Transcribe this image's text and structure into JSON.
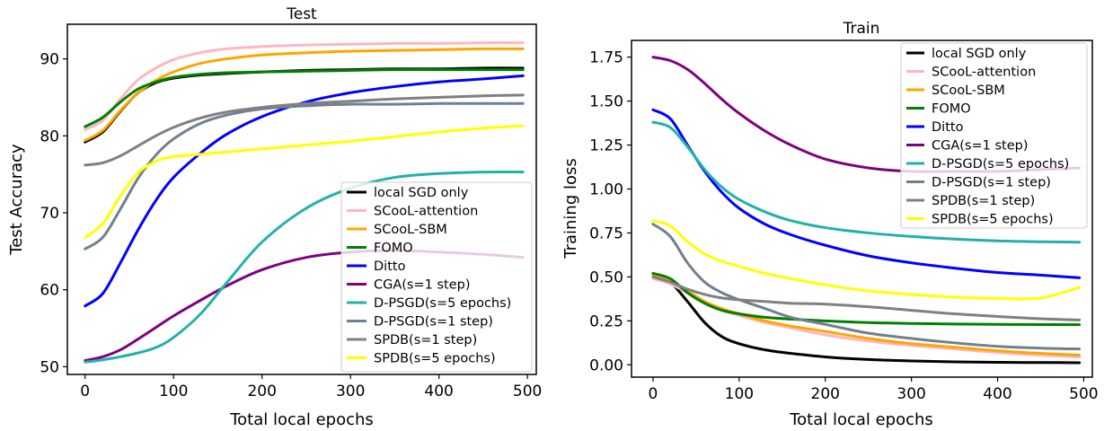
{
  "chart_data": [
    {
      "type": "line",
      "title": "Test",
      "xlabel": "Total local epochs",
      "ylabel": "Test Accuracy",
      "xlim": [
        -20,
        510
      ],
      "ylim": [
        49,
        94.5
      ],
      "xticks": [
        0,
        100,
        200,
        300,
        400,
        500
      ],
      "yticks": [
        50,
        60,
        70,
        80,
        90
      ],
      "grid": false,
      "legend_position": "bottom-right",
      "series": [
        {
          "name": "local SGD only",
          "color": "#000000",
          "x": [
            0,
            20,
            40,
            60,
            80,
            100,
            130,
            160,
            200,
            250,
            300,
            350,
            400,
            450,
            495
          ],
          "y": [
            79.2,
            80.5,
            83.2,
            85.6,
            86.9,
            87.5,
            87.9,
            88.1,
            88.3,
            88.5,
            88.6,
            88.7,
            88.7,
            88.8,
            88.8
          ]
        },
        {
          "name": "SCooL-attention",
          "color": "#FFB6C1",
          "x": [
            0,
            20,
            40,
            60,
            80,
            100,
            130,
            160,
            200,
            250,
            300,
            350,
            400,
            450,
            495
          ],
          "y": [
            80.8,
            82.0,
            84.8,
            87.3,
            88.8,
            89.9,
            90.8,
            91.3,
            91.6,
            91.8,
            91.9,
            92.0,
            92.0,
            92.1,
            92.1
          ]
        },
        {
          "name": "SCooL-SBM",
          "color": "#FFA500",
          "x": [
            0,
            20,
            40,
            60,
            80,
            100,
            130,
            160,
            200,
            250,
            300,
            350,
            400,
            450,
            495
          ],
          "y": [
            79.4,
            80.7,
            83.3,
            85.6,
            87.2,
            88.3,
            89.4,
            90.0,
            90.5,
            90.8,
            91.0,
            91.1,
            91.2,
            91.3,
            91.3
          ]
        },
        {
          "name": "FOMO",
          "color": "#008000",
          "x": [
            0,
            20,
            40,
            60,
            80,
            100,
            130,
            160,
            200,
            250,
            300,
            350,
            400,
            450,
            495
          ],
          "y": [
            81.2,
            82.4,
            84.4,
            86.1,
            87.0,
            87.6,
            88.0,
            88.2,
            88.3,
            88.4,
            88.5,
            88.6,
            88.6,
            88.6,
            88.6
          ]
        },
        {
          "name": "Ditto",
          "color": "#0000FF",
          "x": [
            0,
            20,
            40,
            60,
            80,
            100,
            130,
            160,
            200,
            250,
            300,
            350,
            400,
            450,
            495
          ],
          "y": [
            57.9,
            59.5,
            63.5,
            67.8,
            71.6,
            74.6,
            77.7,
            80.2,
            82.5,
            84.4,
            85.6,
            86.4,
            87.0,
            87.4,
            87.8
          ]
        },
        {
          "name": "CGA(s=1 step)",
          "color": "#800080",
          "x": [
            0,
            20,
            40,
            60,
            80,
            100,
            130,
            160,
            200,
            250,
            300,
            350,
            400,
            450,
            495
          ],
          "y": [
            50.8,
            51.3,
            52.2,
            53.6,
            55.1,
            56.6,
            58.6,
            60.5,
            62.6,
            64.2,
            64.9,
            65.1,
            64.9,
            64.6,
            64.2
          ]
        },
        {
          "name": "D-PSGD(s=5 epochs)",
          "color": "#20B2AA",
          "x": [
            0,
            20,
            40,
            60,
            80,
            100,
            130,
            160,
            200,
            250,
            300,
            350,
            400,
            450,
            495
          ],
          "y": [
            50.6,
            50.9,
            51.3,
            51.8,
            52.5,
            53.8,
            56.8,
            60.9,
            66.2,
            70.6,
            73.2,
            74.6,
            75.1,
            75.3,
            75.3
          ]
        },
        {
          "name": "D-PSGD(s=1 step)",
          "color": "#708090",
          "x": [
            0,
            20,
            40,
            60,
            80,
            100,
            130,
            160,
            200,
            250,
            300,
            350,
            400,
            450,
            495
          ],
          "y": [
            65.3,
            66.8,
            70.5,
            74.5,
            77.5,
            79.6,
            81.6,
            82.7,
            83.5,
            83.9,
            84.1,
            84.1,
            84.2,
            84.2,
            84.2
          ]
        },
        {
          "name": "SPDB(s=1 step)",
          "color": "#808080",
          "x": [
            0,
            20,
            40,
            60,
            80,
            100,
            130,
            160,
            200,
            250,
            300,
            350,
            400,
            450,
            495
          ],
          "y": [
            76.2,
            76.5,
            77.4,
            78.7,
            80.0,
            81.1,
            82.3,
            83.1,
            83.7,
            84.2,
            84.5,
            84.8,
            85.0,
            85.2,
            85.3
          ]
        },
        {
          "name": "SPDB(s=5 epochs)",
          "color": "#FFFF00",
          "x": [
            0,
            20,
            40,
            60,
            80,
            100,
            130,
            160,
            200,
            250,
            300,
            350,
            400,
            450,
            495
          ],
          "y": [
            66.8,
            68.6,
            72.2,
            75.2,
            76.7,
            77.3,
            77.6,
            77.9,
            78.3,
            78.8,
            79.3,
            79.9,
            80.5,
            81.0,
            81.3
          ]
        }
      ]
    },
    {
      "type": "line",
      "title": "Train",
      "xlabel": "Total local epochs",
      "ylabel": "Training loss",
      "xlim": [
        -25,
        510
      ],
      "ylim": [
        -0.07,
        1.845
      ],
      "xticks": [
        0,
        100,
        200,
        300,
        400,
        500
      ],
      "yticks": [
        "0.00",
        "0.25",
        "0.50",
        "0.75",
        "1.00",
        "1.25",
        "1.50",
        "1.75"
      ],
      "grid": false,
      "legend_position": "top-right",
      "series": [
        {
          "name": "local SGD only",
          "color": "#000000",
          "x": [
            0,
            20,
            40,
            60,
            80,
            100,
            130,
            160,
            200,
            250,
            300,
            350,
            400,
            450,
            495
          ],
          "y": [
            0.51,
            0.47,
            0.36,
            0.24,
            0.16,
            0.12,
            0.085,
            0.065,
            0.045,
            0.03,
            0.022,
            0.017,
            0.014,
            0.013,
            0.012
          ]
        },
        {
          "name": "SCooL-attention",
          "color": "#FFB6C1",
          "x": [
            0,
            20,
            40,
            60,
            80,
            100,
            130,
            160,
            200,
            250,
            300,
            350,
            400,
            450,
            495
          ],
          "y": [
            0.49,
            0.46,
            0.41,
            0.36,
            0.31,
            0.28,
            0.24,
            0.21,
            0.17,
            0.135,
            0.11,
            0.09,
            0.07,
            0.055,
            0.045
          ]
        },
        {
          "name": "SCooL-SBM",
          "color": "#FFA500",
          "x": [
            0,
            20,
            40,
            60,
            80,
            100,
            130,
            160,
            200,
            250,
            300,
            350,
            400,
            450,
            495
          ],
          "y": [
            0.51,
            0.48,
            0.42,
            0.36,
            0.32,
            0.29,
            0.25,
            0.22,
            0.19,
            0.15,
            0.12,
            0.1,
            0.08,
            0.065,
            0.055
          ]
        },
        {
          "name": "FOMO",
          "color": "#008000",
          "x": [
            0,
            20,
            40,
            60,
            80,
            100,
            130,
            160,
            200,
            250,
            300,
            350,
            400,
            450,
            495
          ],
          "y": [
            0.52,
            0.49,
            0.41,
            0.35,
            0.31,
            0.29,
            0.27,
            0.26,
            0.25,
            0.24,
            0.235,
            0.232,
            0.23,
            0.229,
            0.228
          ]
        },
        {
          "name": "Ditto",
          "color": "#0000FF",
          "x": [
            0,
            20,
            40,
            60,
            80,
            100,
            130,
            160,
            200,
            250,
            300,
            350,
            400,
            450,
            495
          ],
          "y": [
            1.45,
            1.4,
            1.25,
            1.1,
            0.98,
            0.89,
            0.8,
            0.74,
            0.68,
            0.62,
            0.58,
            0.55,
            0.525,
            0.51,
            0.495
          ]
        },
        {
          "name": "CGA(s=1 step)",
          "color": "#800080",
          "x": [
            0,
            20,
            40,
            60,
            80,
            100,
            130,
            160,
            200,
            250,
            300,
            350,
            400,
            450,
            495
          ],
          "y": [
            1.75,
            1.73,
            1.68,
            1.6,
            1.51,
            1.43,
            1.33,
            1.25,
            1.17,
            1.12,
            1.1,
            1.1,
            1.1,
            1.11,
            1.12
          ]
        },
        {
          "name": "D-PSGD(s=5 epochs)",
          "color": "#20B2AA",
          "x": [
            0,
            20,
            40,
            60,
            80,
            100,
            130,
            160,
            200,
            250,
            300,
            350,
            400,
            450,
            495
          ],
          "y": [
            1.38,
            1.35,
            1.24,
            1.11,
            1.01,
            0.94,
            0.87,
            0.82,
            0.78,
            0.75,
            0.73,
            0.715,
            0.705,
            0.7,
            0.697
          ]
        },
        {
          "name": "D-PSGD(s=1 step)",
          "color": "#708090",
          "x": [
            0,
            20,
            40,
            60,
            80,
            100,
            130,
            160,
            200,
            250,
            300,
            350,
            400,
            450,
            495
          ],
          "y": [
            0.8,
            0.73,
            0.58,
            0.47,
            0.41,
            0.37,
            0.32,
            0.27,
            0.23,
            0.18,
            0.15,
            0.125,
            0.105,
            0.095,
            0.09
          ]
        },
        {
          "name": "SPDB(s=1 step)",
          "color": "#808080",
          "x": [
            0,
            20,
            40,
            60,
            80,
            100,
            130,
            160,
            200,
            250,
            300,
            350,
            400,
            450,
            495
          ],
          "y": [
            0.5,
            0.47,
            0.43,
            0.4,
            0.38,
            0.37,
            0.36,
            0.35,
            0.345,
            0.33,
            0.31,
            0.29,
            0.275,
            0.262,
            0.255
          ]
        },
        {
          "name": "SPDB(s=5 epochs)",
          "color": "#FFFF00",
          "x": [
            0,
            20,
            40,
            60,
            80,
            100,
            130,
            160,
            200,
            250,
            300,
            350,
            400,
            450,
            495
          ],
          "y": [
            0.82,
            0.79,
            0.7,
            0.63,
            0.59,
            0.56,
            0.52,
            0.49,
            0.455,
            0.42,
            0.4,
            0.385,
            0.378,
            0.38,
            0.44
          ]
        }
      ]
    }
  ]
}
